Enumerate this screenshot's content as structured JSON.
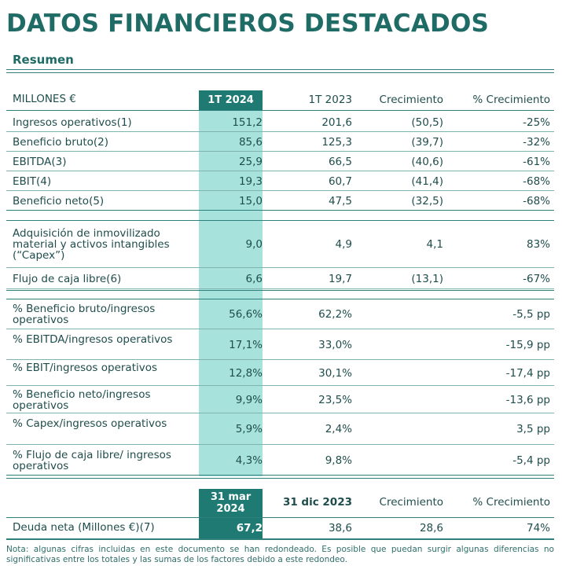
{
  "title": "DATOS FINANCIEROS DESTACADOS",
  "subtitle": "Resumen",
  "table1": {
    "headers": [
      "MILLONES €",
      "1T 2024",
      "1T 2023",
      "Crecimiento",
      "% Crecimiento"
    ],
    "rows": [
      [
        "Ingresos operativos(1)",
        "151,2",
        "201,6",
        "(50,5)",
        "-25%"
      ],
      [
        "Beneficio bruto(2)",
        "85,6",
        "125,3",
        "(39,7)",
        "-32%"
      ],
      [
        "EBITDA(3)",
        "25,9",
        "66,5",
        "(40,6)",
        "-61%"
      ],
      [
        "EBIT(4)",
        "19,3",
        "60,7",
        "(41,4)",
        "-68%"
      ],
      [
        "Beneficio neto(5)",
        "15,0",
        "47,5",
        "(32,5)",
        "-68%"
      ],
      [
        "Adquisición de inmovilizado material y activos intangibles (“Capex”)",
        "9,0",
        "4,9",
        "4,1",
        "83%"
      ],
      [
        "Flujo de caja libre(6)",
        "6,6",
        "19,7",
        "(13,1)",
        "-67%"
      ],
      [
        "% Beneficio bruto/ingresos operativos",
        "56,6%",
        "62,2%",
        "",
        "-5,5 pp"
      ],
      [
        "% EBITDA/ingresos operativos",
        "17,1%",
        "33,0%",
        "",
        "-15,9 pp"
      ],
      [
        "% EBIT/ingresos operativos",
        "12,8%",
        "30,1%",
        "",
        "-17,4 pp"
      ],
      [
        "% Beneficio neto/ingresos operativos",
        "9,9%",
        "23,5%",
        "",
        "-13,6 pp"
      ],
      [
        "% Capex/ingresos operativos",
        "5,9%",
        "2,4%",
        "",
        "3,5 pp"
      ],
      [
        "% Flujo de caja libre/ ingresos operativos",
        "4,3%",
        "9,8%",
        "",
        "-5,4 pp"
      ]
    ]
  },
  "table2": {
    "headers": [
      "",
      "31 mar 2024",
      "31 dic 2023",
      "Crecimiento",
      "% Crecimiento"
    ],
    "rows": [
      [
        "Deuda neta (Millones €)(7)",
        "67,2",
        "38,6",
        "28,6",
        "74%"
      ]
    ]
  },
  "note": "Nota: algunas cifras incluidas en este documento se han redondeado. Es posible que puedan surgir algunas diferencias no significativas entre los totales y las sumas de los factores debido a este redondeo.",
  "colors": {
    "accent": "#1f7a74",
    "highlight": "#a7e3dc",
    "text": "#1f4d4c"
  }
}
